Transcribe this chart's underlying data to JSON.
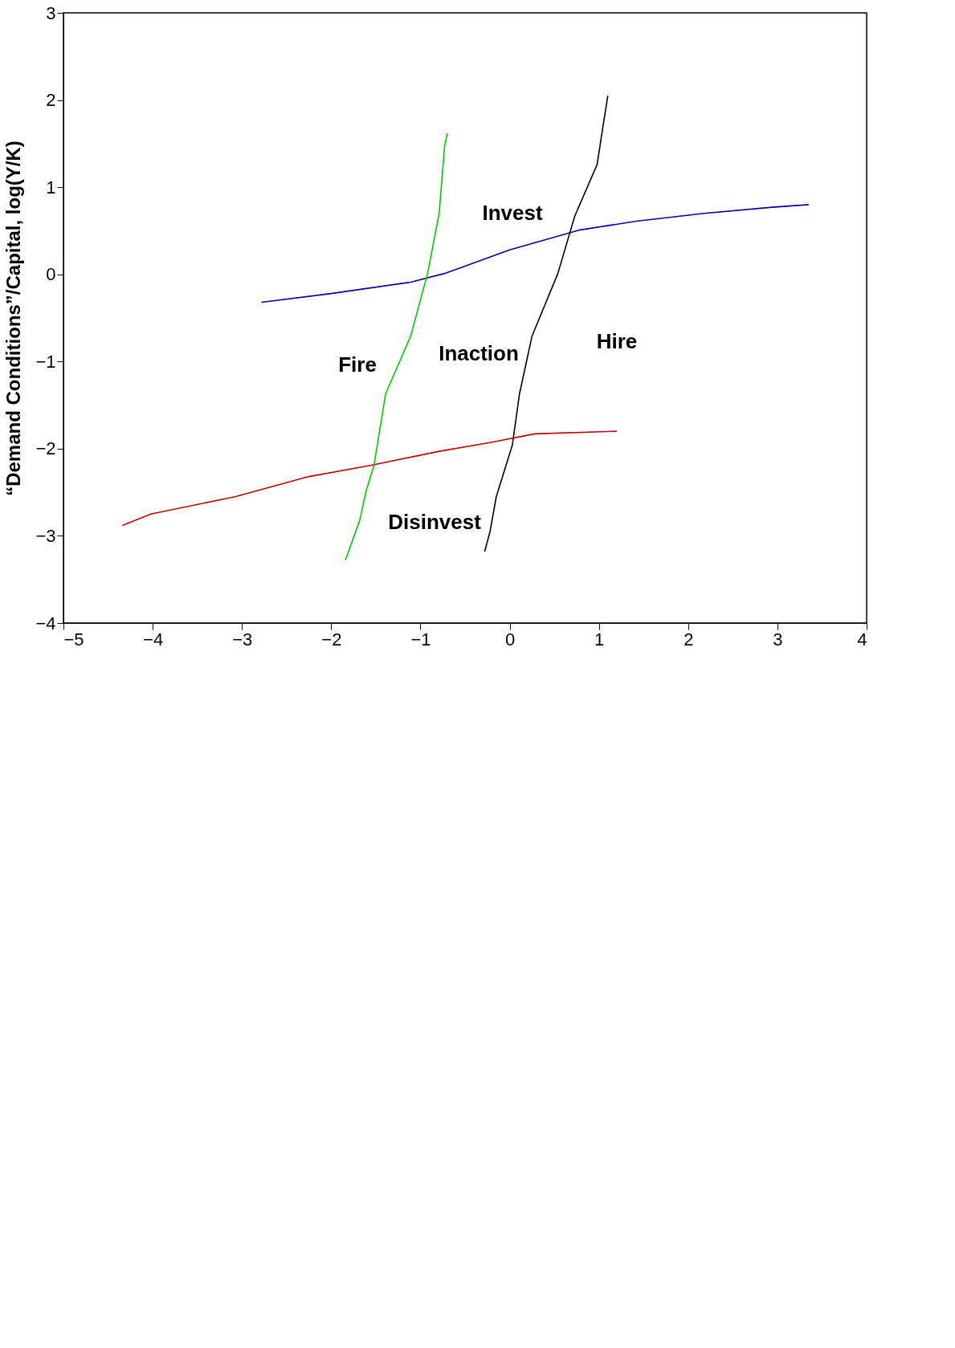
{
  "chart_data": {
    "type": "line",
    "ylabel": "“Demand Conditions”/Capital, log(Y/K)",
    "xlim": [
      -5,
      4
    ],
    "ylim": [
      -4,
      3
    ],
    "xticks": [
      -5,
      -4,
      -3,
      -2,
      -1,
      0,
      1,
      2,
      3,
      4
    ],
    "yticks": [
      -4,
      -3,
      -2,
      -1,
      0,
      1,
      2,
      3
    ],
    "grid": false,
    "marker": "none",
    "line_style": "solid",
    "series": [
      {
        "color": "#0000a0",
        "x": [
          -2.78,
          -2.0,
          -1.11,
          -0.73,
          0.0,
          0.79,
          1.42,
          2.18,
          2.94,
          3.35
        ],
        "values": [
          -0.32,
          -0.22,
          -0.09,
          0.01,
          0.28,
          0.51,
          0.61,
          0.7,
          0.77,
          0.8
        ]
      },
      {
        "color": "#000000",
        "x": [
          -0.28,
          -0.22,
          -0.15,
          0.03,
          0.11,
          0.25,
          0.54,
          0.73,
          0.98,
          1.04,
          1.1
        ],
        "values": [
          -3.18,
          -2.95,
          -2.55,
          -1.96,
          -1.37,
          -0.71,
          0.01,
          0.67,
          1.26,
          1.66,
          2.05
        ]
      },
      {
        "color": "#c00000",
        "x": [
          -4.34,
          -4.02,
          -3.07,
          -2.25,
          -1.55,
          -0.79,
          -0.22,
          0.28,
          1.2
        ],
        "values": [
          -2.88,
          -2.75,
          -2.55,
          -2.32,
          -2.19,
          -2.03,
          -1.93,
          -1.83,
          -1.8
        ]
      },
      {
        "color": "#00cc00",
        "x": [
          -1.84,
          -1.68,
          -1.61,
          -1.52,
          -1.39,
          -1.11,
          -0.92,
          -0.79,
          -0.73,
          -0.7
        ],
        "values": [
          -3.28,
          -2.82,
          -2.49,
          -2.19,
          -1.37,
          -0.71,
          0.01,
          0.7,
          1.46,
          1.62
        ]
      }
    ],
    "annotations": [
      "Hire",
      "Invest",
      "Inaction",
      "Fire",
      "Disinvest"
    ]
  }
}
